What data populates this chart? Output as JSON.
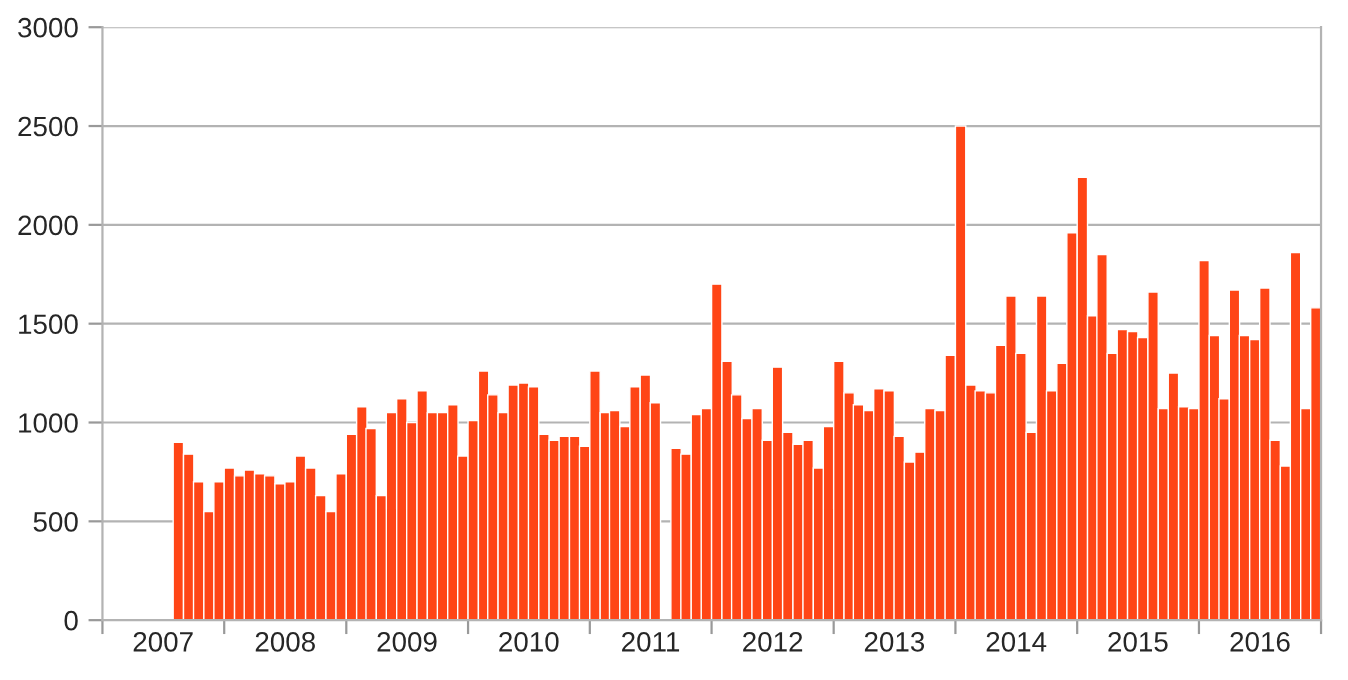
{
  "chart_data": {
    "type": "bar",
    "color": "#ff4516",
    "x": [
      "2007-08",
      "2007-09",
      "2007-10",
      "2007-11",
      "2007-12",
      "2008-01",
      "2008-02",
      "2008-03",
      "2008-04",
      "2008-05",
      "2008-06",
      "2008-07",
      "2008-08",
      "2008-09",
      "2008-10",
      "2008-11",
      "2008-12",
      "2009-01",
      "2009-02",
      "2009-03",
      "2009-04",
      "2009-05",
      "2009-06",
      "2009-07",
      "2009-08",
      "2009-09",
      "2009-10",
      "2009-11",
      "2009-12",
      "2010-01",
      "2010-02",
      "2010-03",
      "2010-04",
      "2010-05",
      "2010-06",
      "2010-07",
      "2010-08",
      "2010-09",
      "2010-10",
      "2010-11",
      "2010-12",
      "2011-01",
      "2011-02",
      "2011-03",
      "2011-04",
      "2011-05",
      "2011-06",
      "2011-07",
      "2011-08",
      "2011-09",
      "2011-10",
      "2011-11",
      "2011-12",
      "2012-01",
      "2012-02",
      "2012-03",
      "2012-04",
      "2012-05",
      "2012-06",
      "2012-07",
      "2012-08",
      "2012-09",
      "2012-10",
      "2012-11",
      "2012-12",
      "2013-01",
      "2013-02",
      "2013-03",
      "2013-04",
      "2013-05",
      "2013-06",
      "2013-07",
      "2013-08",
      "2013-09",
      "2013-10",
      "2013-11",
      "2013-12",
      "2014-01",
      "2014-02",
      "2014-03",
      "2014-04",
      "2014-05",
      "2014-06",
      "2014-07",
      "2014-08",
      "2014-09",
      "2014-10",
      "2014-11",
      "2014-12",
      "2015-01",
      "2015-02",
      "2015-03",
      "2015-04",
      "2015-05",
      "2015-06",
      "2015-07",
      "2015-08",
      "2015-09",
      "2015-10",
      "2015-11",
      "2015-12",
      "2016-01",
      "2016-02",
      "2016-03",
      "2016-04",
      "2016-05",
      "2016-06",
      "2016-07",
      "2016-08",
      "2016-09",
      "2016-10",
      "2016-11",
      "2016-12"
    ],
    "values": [
      900,
      840,
      700,
      550,
      700,
      770,
      730,
      760,
      740,
      730,
      690,
      700,
      830,
      770,
      630,
      550,
      740,
      940,
      1080,
      970,
      630,
      1050,
      1120,
      1000,
      1160,
      1050,
      1050,
      1090,
      830,
      1010,
      1260,
      1140,
      1050,
      1190,
      1200,
      1180,
      940,
      910,
      930,
      930,
      880,
      1260,
      1050,
      1060,
      980,
      1180,
      1240,
      1100,
      null,
      870,
      840,
      1040,
      1070,
      1700,
      1310,
      1140,
      1020,
      1070,
      910,
      1280,
      950,
      890,
      910,
      770,
      980,
      1310,
      1150,
      1090,
      1060,
      1170,
      1160,
      930,
      800,
      850,
      1070,
      1060,
      1340,
      2500,
      1190,
      1160,
      1150,
      1390,
      1640,
      1350,
      950,
      1640,
      1160,
      1300,
      1960,
      2240,
      1540,
      1850,
      1350,
      1470,
      1460,
      1430,
      1660,
      1070,
      1250,
      1080,
      1070,
      1820,
      1440,
      1120,
      1670,
      1440,
      1420,
      1680,
      910,
      780,
      1860,
      1070,
      1580
    ],
    "xlim": [
      "2007-01",
      "2017-01"
    ],
    "xticks": [
      {
        "value": "2007-01",
        "label": null
      },
      {
        "value": "2007-07-02",
        "label": "2007"
      },
      {
        "value": "2008-01",
        "label": null
      },
      {
        "value": "2008-07-02",
        "label": "2008"
      },
      {
        "value": "2009-01",
        "label": null
      },
      {
        "value": "2009-07-02",
        "label": "2009"
      },
      {
        "value": "2010-01",
        "label": null
      },
      {
        "value": "2010-07-02",
        "label": "2010"
      },
      {
        "value": "2011-01",
        "label": null
      },
      {
        "value": "2011-07-02",
        "label": "2011"
      },
      {
        "value": "2012-01",
        "label": null
      },
      {
        "value": "2012-07-02",
        "label": "2012"
      },
      {
        "value": "2013-01",
        "label": null
      },
      {
        "value": "2013-07-02",
        "label": "2013"
      },
      {
        "value": "2014-01",
        "label": null
      },
      {
        "value": "2014-07-02",
        "label": "2014"
      },
      {
        "value": "2015-01",
        "label": null
      },
      {
        "value": "2015-07-02",
        "label": "2015"
      },
      {
        "value": "2016-01",
        "label": null
      },
      {
        "value": "2016-07-02",
        "label": "2016"
      },
      {
        "value": "2017-01",
        "label": null
      }
    ],
    "ylim": [
      0,
      3000
    ],
    "yticks": [
      0,
      500,
      1000,
      1500,
      2000,
      2500,
      3000
    ],
    "grid": "y",
    "legend": false
  }
}
